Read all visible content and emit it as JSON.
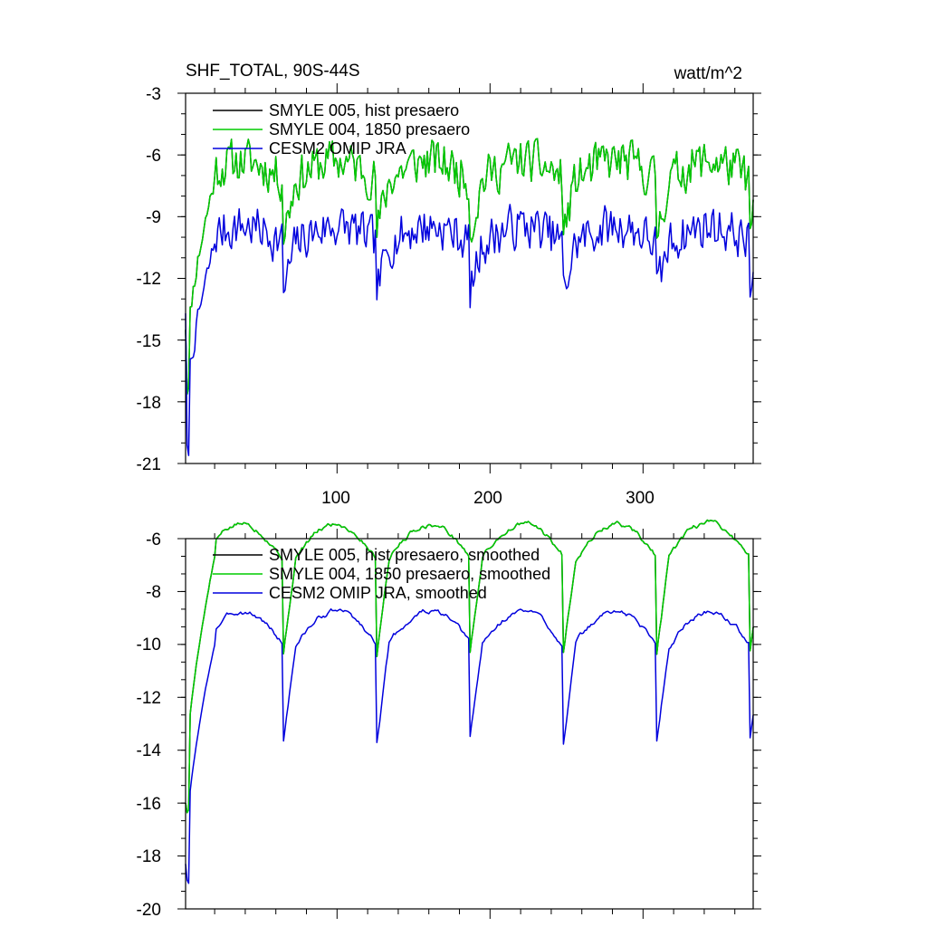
{
  "chart_data": [
    {
      "id": "top",
      "type": "line",
      "title_left": "SHF_TOTAL, 90S-44S",
      "title_right": "watt/m^2",
      "xlabel": "",
      "ylabel": "",
      "xlim": [
        1,
        372
      ],
      "ylim": [
        -21,
        -3
      ],
      "yticks": [
        -3,
        -6,
        -9,
        -12,
        -15,
        -18,
        -21
      ],
      "ytick_labels": [
        "-3",
        "-6",
        "-9",
        "-12",
        "-15",
        "-18",
        "-21"
      ],
      "xticks": [
        100,
        200,
        300
      ],
      "xtick_labels": [
        "100",
        "200",
        "300"
      ],
      "grid": false,
      "legend_position": "top-left",
      "series": [
        {
          "name": "SMYLE 005, hist presaero",
          "color": "#000000",
          "base": -7.2,
          "amp": 2.6,
          "noise": 0.9,
          "seed": 11,
          "start": -14.5,
          "spin_min": -17.5
        },
        {
          "name": "SMYLE 004, 1850 presaero",
          "color": "#00cc00",
          "base": -7.2,
          "amp": 2.6,
          "noise": 0.9,
          "seed": 11,
          "start": -14.5,
          "spin_min": -17.5
        },
        {
          "name": "CESM2 OMIP JRA",
          "color": "#0000dd",
          "base": -10.3,
          "amp": 2.4,
          "noise": 0.9,
          "seed": 7,
          "start": -13.7,
          "spin_min": -20.2
        }
      ]
    },
    {
      "id": "bottom",
      "type": "line",
      "title_left": "",
      "title_right": "",
      "xlabel": "",
      "ylabel": "",
      "xlim": [
        1,
        372
      ],
      "ylim": [
        -20,
        -6
      ],
      "yticks": [
        -6,
        -8,
        -10,
        -12,
        -14,
        -16,
        -18,
        -20
      ],
      "ytick_labels": [
        "-6",
        "-8",
        "-10",
        "-12",
        "-14",
        "-16",
        "-18",
        "-20"
      ],
      "xticks": [
        100,
        200,
        300
      ],
      "xtick_labels": [],
      "grid": false,
      "legend_position": "top-left",
      "series": [
        {
          "name": "SMYLE 005, hist presaero, smoothed",
          "color": "#000000",
          "base": -6.7,
          "amp": 3.6,
          "noise": 0.25,
          "seed": 5,
          "start": -16.0,
          "spin_min": -16.3
        },
        {
          "name": "SMYLE 004, 1850 presaero, smoothed",
          "color": "#00cc00",
          "base": -6.7,
          "amp": 3.6,
          "noise": 0.25,
          "seed": 5,
          "start": -16.0,
          "spin_min": -16.3
        },
        {
          "name": "CESM2 OMIP JRA, smoothed",
          "color": "#0000dd",
          "base": -10.0,
          "amp": 3.6,
          "noise": 0.25,
          "seed": 3,
          "start": -18.3,
          "spin_min": -19.0
        }
      ]
    }
  ]
}
